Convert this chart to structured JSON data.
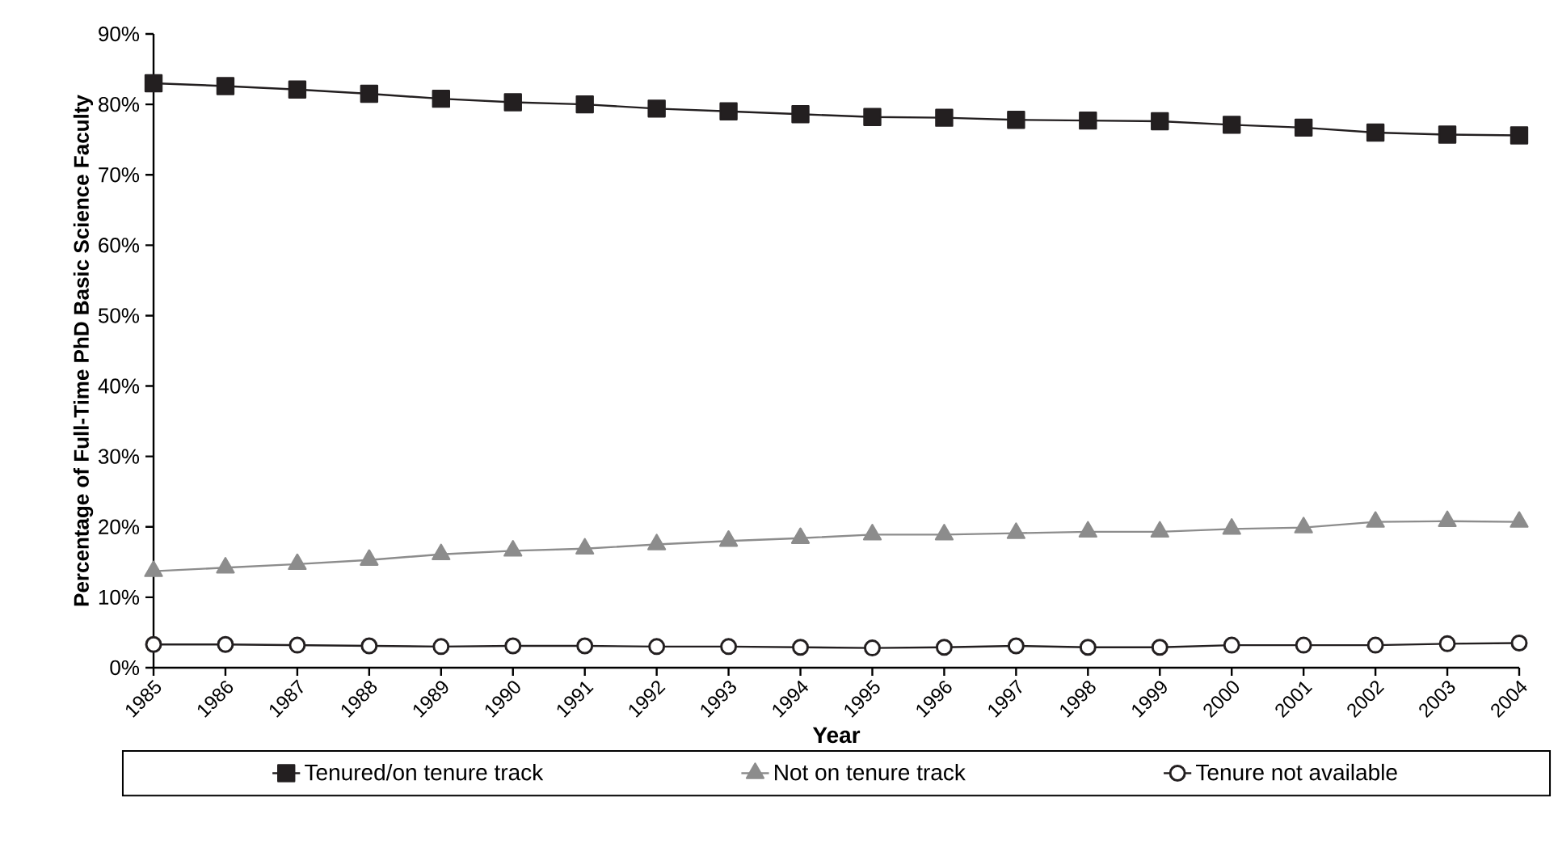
{
  "chart_data": {
    "type": "line",
    "xlabel": "Year",
    "ylabel": "Percentage of Full-Time PhD Basic Science Faculty",
    "categories": [
      "1985",
      "1986",
      "1987",
      "1988",
      "1989",
      "1990",
      "1991",
      "1992",
      "1993",
      "1994",
      "1995",
      "1996",
      "1997",
      "1998",
      "1999",
      "2000",
      "2001",
      "2002",
      "2003",
      "2004"
    ],
    "ylim": [
      0,
      90
    ],
    "yticks": [
      {
        "value": 0,
        "label": "0%"
      },
      {
        "value": 10,
        "label": "10%"
      },
      {
        "value": 20,
        "label": "20%"
      },
      {
        "value": 30,
        "label": "30%"
      },
      {
        "value": 40,
        "label": "40%"
      },
      {
        "value": 50,
        "label": "50%"
      },
      {
        "value": 60,
        "label": "60%"
      },
      {
        "value": 70,
        "label": "70%"
      },
      {
        "value": 80,
        "label": "80%"
      },
      {
        "value": 90,
        "label": "90%"
      }
    ],
    "grid": false,
    "legend": "bottom",
    "series": [
      {
        "name": "Tenured/on tenure track",
        "color": "#231f20",
        "marker": "square",
        "values": [
          83,
          82.6,
          82.1,
          81.5,
          80.8,
          80.3,
          80,
          79.4,
          79,
          78.6,
          78.2,
          78.1,
          77.8,
          77.7,
          77.6,
          77.1,
          76.7,
          76,
          75.7,
          75.6
        ]
      },
      {
        "name": "Not on tenure track",
        "color": "#8c8c8c",
        "marker": "triangle",
        "values": [
          13.7,
          14.2,
          14.7,
          15.3,
          16.1,
          16.6,
          16.9,
          17.5,
          18,
          18.4,
          18.9,
          18.9,
          19.1,
          19.3,
          19.3,
          19.7,
          19.9,
          20.7,
          20.8,
          20.7
        ]
      },
      {
        "name": "Tenure not available",
        "color": "#231f20",
        "marker": "circle",
        "values": [
          3.3,
          3.3,
          3.2,
          3.1,
          3,
          3.1,
          3.1,
          3,
          3,
          2.9,
          2.8,
          2.9,
          3.1,
          2.9,
          2.9,
          3.2,
          3.2,
          3.2,
          3.4,
          3.5
        ]
      }
    ]
  }
}
